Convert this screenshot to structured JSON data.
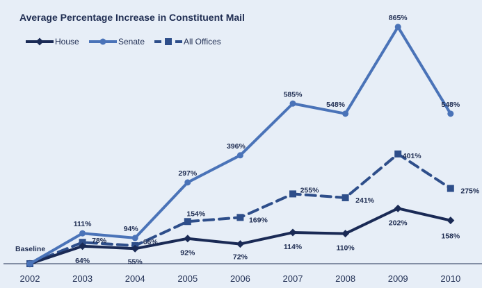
{
  "chart_data": {
    "type": "line",
    "title": "Average Percentage Increase in Constituent Mail",
    "categories": [
      "2002",
      "2003",
      "2004",
      "2005",
      "2006",
      "2007",
      "2008",
      "2009",
      "2010"
    ],
    "baseline_label": "Baseline",
    "ylim": [
      0,
      900
    ],
    "grid": false,
    "legend_position": "top-left",
    "series": [
      {
        "name": "House",
        "color": "#1a2a55",
        "dash": "solid",
        "marker": "diamond",
        "values": [
          0,
          64,
          55,
          92,
          72,
          114,
          110,
          202,
          158
        ],
        "labels": [
          "",
          "64%",
          "55%",
          "92%",
          "72%",
          "114%",
          "110%",
          "202%",
          "158%"
        ]
      },
      {
        "name": "Senate",
        "color": "#4a73b8",
        "dash": "solid",
        "marker": "circle",
        "values": [
          0,
          111,
          94,
          297,
          396,
          585,
          548,
          865,
          548
        ],
        "labels": [
          "",
          "111%",
          "94%",
          "297%",
          "396%",
          "585%",
          "548%",
          "865%",
          "548%"
        ]
      },
      {
        "name": "All Offices",
        "color": "#2e4e8a",
        "dash": "dashed",
        "marker": "square",
        "values": [
          0,
          78,
          66,
          154,
          169,
          255,
          241,
          401,
          275
        ],
        "labels": [
          "",
          "78%",
          "66%",
          "154%",
          "169%",
          "255%",
          "241%",
          "401%",
          "275%"
        ]
      }
    ]
  }
}
